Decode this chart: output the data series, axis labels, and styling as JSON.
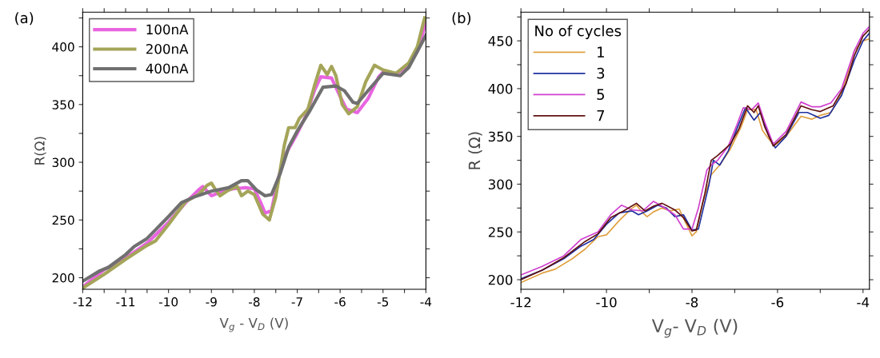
{
  "chart_data": [
    {
      "type": "line",
      "title": "(a)",
      "xlabel": "V$_{g}$ - V$_{D}$ (V)",
      "ylabel": "R(Ω)",
      "xlim": [
        -12,
        -4
      ],
      "ylim": [
        190,
        430
      ],
      "xticks": [
        -12,
        {
          "value": -11.5,
          "label": null
        },
        -11,
        {
          "value": -10.5,
          "label": null
        },
        -10,
        {
          "value": -9.5,
          "label": null
        },
        -9,
        {
          "value": -8.5,
          "label": null
        },
        -8,
        {
          "value": -7.5,
          "label": null
        },
        -7,
        {
          "value": -6.5,
          "label": null
        },
        -6,
        {
          "value": -5.5,
          "label": null
        },
        -5,
        {
          "value": -4.5,
          "label": null
        },
        -4
      ],
      "yticks": [
        200,
        {
          "value": 225,
          "label": null
        },
        250,
        {
          "value": 275,
          "label": null
        },
        300,
        {
          "value": 325,
          "label": null
        },
        350,
        {
          "value": 375,
          "label": null
        },
        400,
        {
          "value": 425,
          "label": null
        }
      ],
      "grid": false,
      "legend": "top left",
      "series": [
        {
          "name": "100nA",
          "color": "#e865e0",
          "x": [
            -12,
            -11.5,
            -11,
            -10.5,
            -10,
            -9.6,
            -9.3,
            -9.2,
            -9.0,
            -8.8,
            -8.5,
            -8.2,
            -8.0,
            -7.85,
            -7.75,
            -7.6,
            -7.45,
            -7.3,
            -7.0,
            -6.8,
            -6.6,
            -6.45,
            -6.2,
            -6.0,
            -5.85,
            -5.6,
            -5.35,
            -5.1,
            -5.0,
            -4.7,
            -4.4,
            -4.2,
            -4.0
          ],
          "values": [
            192,
            207,
            217,
            230,
            248,
            265,
            276,
            279,
            271,
            274,
            277,
            278,
            277,
            265,
            256,
            258,
            285,
            305,
            325,
            340,
            362,
            374,
            373,
            357,
            346,
            343,
            355,
            374,
            378,
            376,
            385,
            396,
            421
          ]
        },
        {
          "name": "200nA",
          "color": "#a5a55a",
          "x": [
            -12,
            -11.5,
            -11,
            -10.5,
            -10.3,
            -10,
            -9.6,
            -9.3,
            -9.1,
            -9.0,
            -8.9,
            -8.8,
            -8.6,
            -8.4,
            -8.3,
            -8.15,
            -8.0,
            -7.8,
            -7.65,
            -7.5,
            -7.3,
            -7.2,
            -7.05,
            -6.95,
            -6.75,
            -6.6,
            -6.45,
            -6.3,
            -6.2,
            -6.1,
            -5.95,
            -5.8,
            -5.6,
            -5.4,
            -5.2,
            -5.0,
            -4.7,
            -4.4,
            -4.2,
            -4.03
          ],
          "values": [
            191,
            203,
            216,
            228,
            232,
            246,
            266,
            272,
            280,
            282,
            276,
            271,
            276,
            279,
            271,
            275,
            272,
            255,
            250,
            270,
            315,
            330,
            330,
            338,
            346,
            366,
            384,
            376,
            383,
            375,
            350,
            342,
            348,
            370,
            384,
            380,
            377,
            386,
            400,
            425
          ]
        },
        {
          "name": "400nA",
          "color": "#707070",
          "x": [
            -12,
            -11.6,
            -11.4,
            -11,
            -10.8,
            -10.5,
            -10.0,
            -9.7,
            -9.4,
            -9.0,
            -8.6,
            -8.3,
            -8.15,
            -7.95,
            -7.75,
            -7.6,
            -7.4,
            -7.2,
            -7.0,
            -6.7,
            -6.4,
            -6.1,
            -5.9,
            -5.7,
            -5.6,
            -5.35,
            -5.0,
            -4.6,
            -4.4,
            -4.0
          ],
          "values": [
            197,
            206,
            209,
            220,
            227,
            234,
            253,
            265,
            270,
            275,
            278,
            284,
            284,
            276,
            271,
            272,
            290,
            313,
            327,
            345,
            365,
            366,
            362,
            352,
            351,
            362,
            377,
            375,
            382,
            410
          ]
        }
      ]
    },
    {
      "type": "line",
      "title": "(b)",
      "xlabel": "V$_{g}$- V$_{D}$ (V)",
      "ylabel": "R (Ω)",
      "legend_title": "No of cycles",
      "xlim": [
        -12,
        -3.85
      ],
      "ylim": [
        190,
        480
      ],
      "xticks": [
        -12,
        {
          "value": -11,
          "label": null
        },
        -10,
        {
          "value": -9,
          "label": null
        },
        -8,
        {
          "value": -7,
          "label": null
        },
        -6,
        {
          "value": -5,
          "label": null
        },
        -4
      ],
      "yticks": [
        200,
        {
          "value": 225,
          "label": null
        },
        250,
        {
          "value": 275,
          "label": null
        },
        300,
        {
          "value": 325,
          "label": null
        },
        350,
        {
          "value": 375,
          "label": null
        },
        400,
        {
          "value": 425,
          "label": null
        },
        450,
        {
          "value": 475,
          "label": null
        }
      ],
      "grid": false,
      "legend": "top left",
      "series": [
        {
          "name": "1",
          "color": "#e0a040",
          "x": [
            -12,
            -11.5,
            -11.2,
            -10.8,
            -10.5,
            -10.2,
            -10,
            -9.7,
            -9.4,
            -9.3,
            -9.15,
            -9.05,
            -8.9,
            -8.7,
            -8.5,
            -8.3,
            -8.15,
            -8.0,
            -7.9,
            -7.75,
            -7.55,
            -7.35,
            -7.1,
            -6.85,
            -6.7,
            -6.5,
            -6.35,
            -6.2,
            -6.05,
            -5.8,
            -5.45,
            -5.2,
            -5.0,
            -4.75,
            -4.5,
            -4.2,
            -4.0,
            -3.85
          ],
          "values": [
            197,
            207,
            211,
            222,
            232,
            245,
            247,
            262,
            275,
            278,
            270,
            266,
            271,
            275,
            272,
            274,
            260,
            246,
            250,
            280,
            310,
            320,
            337,
            360,
            378,
            378,
            356,
            347,
            341,
            350,
            371,
            368,
            372,
            375,
            395,
            440,
            450,
            452
          ]
        },
        {
          "name": "3",
          "color": "#2030a0",
          "x": [
            -12,
            -11.5,
            -11.0,
            -10.6,
            -10.3,
            -10,
            -9.7,
            -9.4,
            -9.25,
            -9.05,
            -8.8,
            -8.6,
            -8.4,
            -8.2,
            -8.0,
            -7.85,
            -7.6,
            -7.5,
            -7.35,
            -7.15,
            -6.95,
            -6.75,
            -6.55,
            -6.4,
            -6.2,
            -6.05,
            -5.8,
            -5.5,
            -5.3,
            -5.0,
            -4.8,
            -4.5,
            -4.2,
            -4.0,
            -3.85
          ],
          "values": [
            201,
            210,
            222,
            235,
            242,
            258,
            270,
            272,
            268,
            272,
            278,
            275,
            266,
            268,
            252,
            253,
            300,
            325,
            320,
            335,
            358,
            380,
            367,
            375,
            350,
            338,
            350,
            375,
            375,
            369,
            372,
            393,
            430,
            450,
            458
          ]
        },
        {
          "name": "5",
          "color": "#d040d0",
          "x": [
            -12,
            -11.5,
            -11.0,
            -10.6,
            -10.2,
            -9.9,
            -9.65,
            -9.4,
            -9.15,
            -8.9,
            -8.7,
            -8.4,
            -8.2,
            -8.0,
            -7.85,
            -7.65,
            -7.55,
            -7.4,
            -7.15,
            -6.95,
            -6.8,
            -6.6,
            -6.45,
            -6.3,
            -6.1,
            -5.8,
            -5.45,
            -5.2,
            -5.0,
            -4.75,
            -4.5,
            -4.2,
            -4.0,
            -3.85
          ],
          "values": [
            205,
            214,
            225,
            242,
            250,
            268,
            278,
            273,
            272,
            282,
            277,
            268,
            253,
            253,
            275,
            315,
            320,
            325,
            340,
            362,
            380,
            378,
            385,
            365,
            342,
            355,
            386,
            381,
            381,
            385,
            400,
            440,
            458,
            465
          ]
        },
        {
          "name": "7",
          "color": "#601010",
          "x": [
            -12,
            -11.5,
            -11.0,
            -10.5,
            -10.2,
            -9.9,
            -9.6,
            -9.3,
            -9.1,
            -8.9,
            -8.7,
            -8.4,
            -8.2,
            -8.0,
            -7.9,
            -7.7,
            -7.55,
            -7.4,
            -7.1,
            -6.9,
            -6.7,
            -6.55,
            -6.45,
            -6.3,
            -6.1,
            -5.8,
            -5.45,
            -5.2,
            -5.0,
            -4.7,
            -4.4,
            -4.2,
            -4.0,
            -3.85
          ],
          "values": [
            200,
            210,
            223,
            240,
            248,
            265,
            272,
            280,
            272,
            277,
            280,
            273,
            265,
            251,
            252,
            290,
            325,
            330,
            342,
            358,
            382,
            375,
            382,
            360,
            340,
            352,
            382,
            378,
            376,
            382,
            405,
            435,
            455,
            462
          ]
        }
      ]
    }
  ]
}
